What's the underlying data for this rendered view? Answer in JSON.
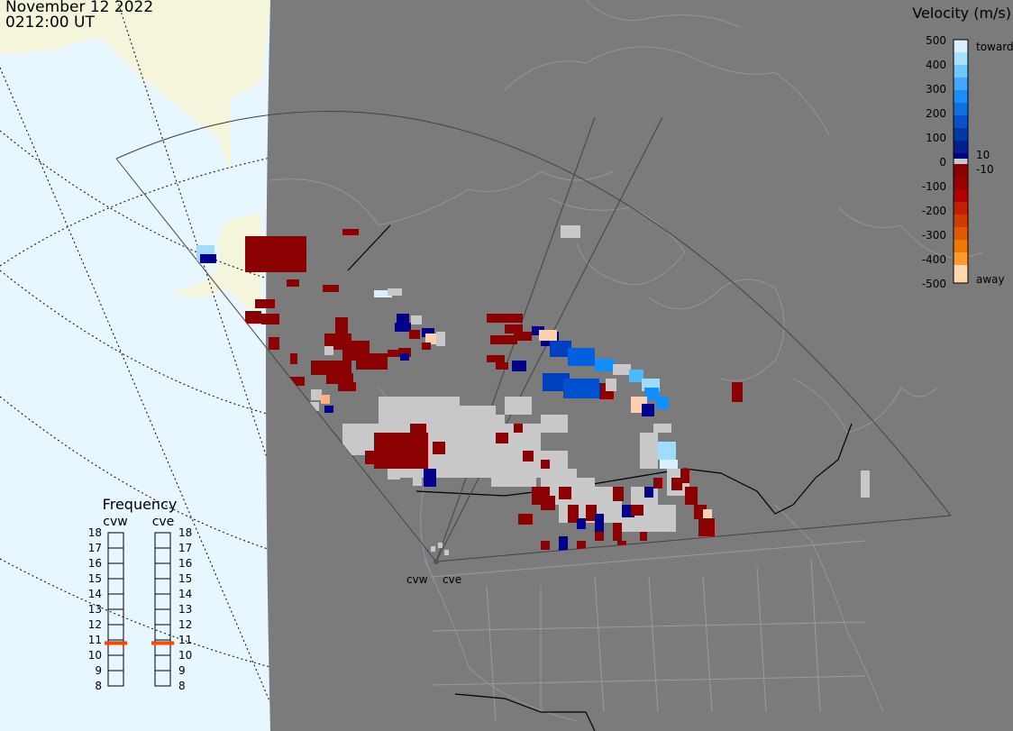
{
  "header": {
    "date": "November 12 2022",
    "time": "0212:00 UT"
  },
  "colors": {
    "ocean": "#e8f6ff",
    "land_outside": "#f5f5dc",
    "night_gray": "#7b7b7b",
    "coastline": "#9a9a9a",
    "ground_scatter": "#c8c8c8",
    "away_dark_red": "#8b0000",
    "toward_dark_blue": "#00008b"
  },
  "velocity_scale": {
    "title": "Velocity (m/s)",
    "ticks": [
      "500",
      "400",
      "300",
      "200",
      "100",
      "0",
      "-100",
      "-200",
      "-300",
      "-400",
      "-500"
    ],
    "positive_label": "toward",
    "negative_label": "away",
    "threshold_pos": "10",
    "threshold_neg": "-10"
  },
  "frequency": {
    "title": "Frequency",
    "radars": [
      "cvw",
      "cve"
    ],
    "ticks": [
      "18",
      "17",
      "16",
      "15",
      "14",
      "13",
      "12",
      "11",
      "10",
      "9",
      "8"
    ],
    "cvw_MHz": 10.8,
    "cve_MHz": 10.8
  },
  "radar_sites": [
    {
      "name": "cvw"
    },
    {
      "name": "cve"
    }
  ]
}
